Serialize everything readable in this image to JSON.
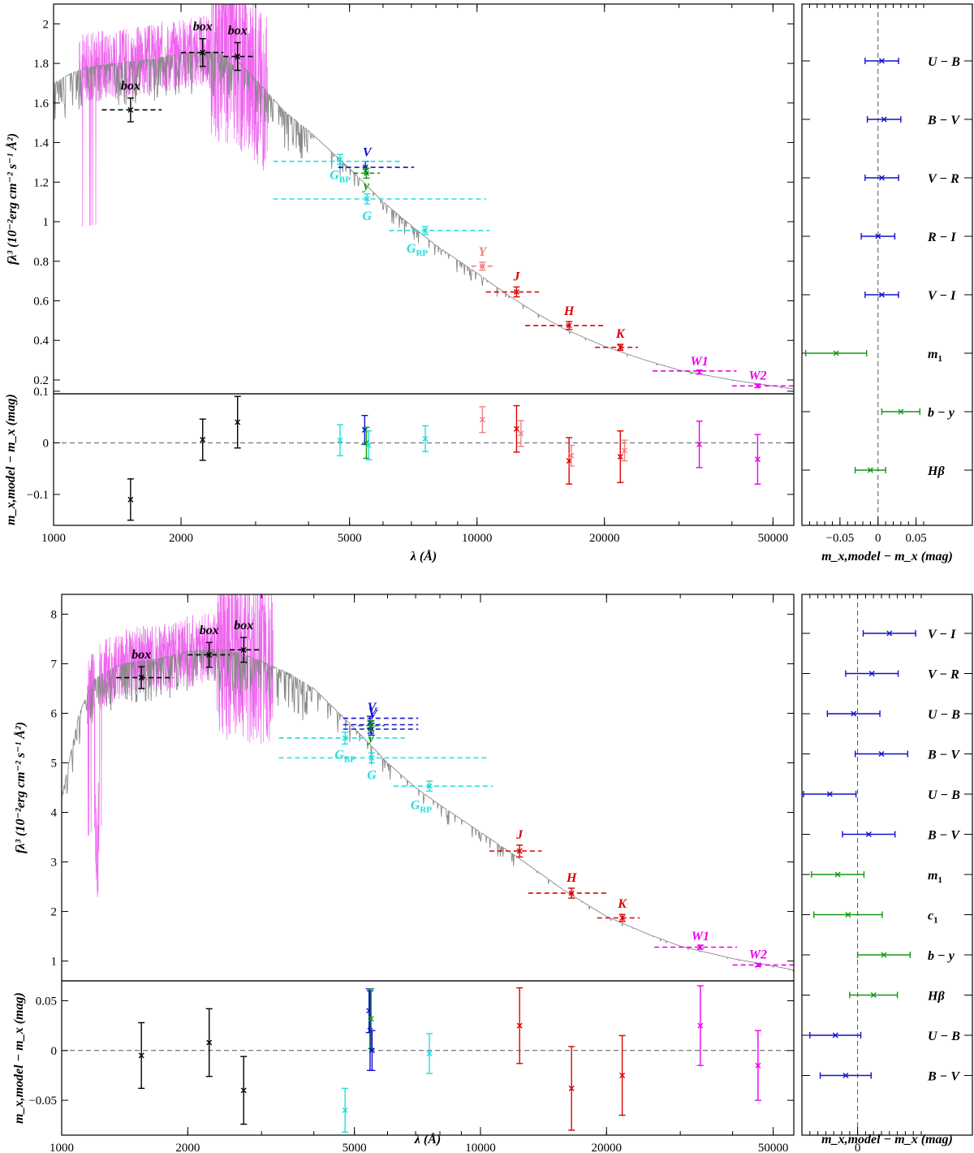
{
  "chart_data": [
    {
      "type": "scatter",
      "subtype": "spectral energy distribution with photometry",
      "x_axis": {
        "label": "λ (Å)",
        "scale": "log",
        "range": [
          1000,
          56000
        ],
        "ticks": [
          1000,
          2000,
          5000,
          10000,
          20000,
          50000
        ],
        "tick_labels": [
          "1000",
          "2000",
          "5000",
          "10000",
          "20000",
          "50000"
        ]
      },
      "sed_panel": {
        "ylabel": "fλ³ (10⁻²erg cm⁻² s⁻¹ Å²)",
        "ylim": [
          0.13,
          2.1
        ],
        "yticks": [
          0.2,
          0.4,
          0.6,
          0.8,
          1,
          1.2,
          1.4,
          1.6,
          1.8,
          2
        ],
        "ytick_labels": [
          "0.2",
          "0.4",
          "0.6",
          "0.8",
          "1",
          "1.2",
          "1.4",
          "1.6",
          "1.8",
          "2"
        ],
        "model_curve": {
          "color": "#888888",
          "x": [
            1000,
            1100,
            1200,
            1400,
            1700,
            2000,
            2400,
            2700,
            3000,
            3500,
            4000,
            5000,
            6000,
            7000,
            8000,
            10000,
            12000,
            14000,
            16000,
            20000,
            25000,
            30000,
            40000,
            50000,
            56000
          ],
          "y": [
            1.7,
            1.75,
            1.78,
            1.8,
            1.82,
            1.85,
            1.86,
            1.82,
            1.72,
            1.56,
            1.46,
            1.27,
            1.1,
            0.98,
            0.88,
            0.74,
            0.62,
            0.53,
            0.46,
            0.37,
            0.3,
            0.25,
            0.2,
            0.17,
            0.155
          ]
        },
        "iue_spectrum": {
          "color": "#ee66ee",
          "x_range": [
            1150,
            3200
          ],
          "note": "noisy UV spectrum"
        },
        "photometry": [
          {
            "label": "box",
            "color": "#000000",
            "x": 1520,
            "y": 1.565,
            "yerr": 0.06,
            "xlo": 1300,
            "xhi": 1800,
            "yline": 1.565
          },
          {
            "label": "box",
            "color": "#000000",
            "x": 2250,
            "y": 1.855,
            "yerr": 0.07,
            "xlo": 2000,
            "xhi": 2520,
            "yline": 1.855
          },
          {
            "label": "box",
            "color": "#000000",
            "x": 2720,
            "y": 1.835,
            "yerr": 0.07,
            "xlo": 2520,
            "xhi": 3000,
            "yline": 1.835
          },
          {
            "label": "V",
            "color": "#1111cc",
            "x": 5450,
            "y": 1.275,
            "yerr": 0.03,
            "xlo": 4700,
            "xhi": 7100,
            "yline": 1.275
          },
          {
            "label": "y",
            "color": "#119911",
            "x": 5480,
            "y": 1.245,
            "yerr": 0.025,
            "xlo": 5100,
            "xhi": 5900,
            "yline": 1.245
          },
          {
            "label": "G_BP",
            "color": "#22dddd",
            "x": 4750,
            "y": 1.315,
            "yerr": 0.025,
            "xlo": 3300,
            "xhi": 6600,
            "yline": 1.305
          },
          {
            "label": "G",
            "color": "#22dddd",
            "x": 5500,
            "y": 1.115,
            "yerr": 0.025,
            "xlo": 3300,
            "xhi": 10500,
            "yline": 1.115
          },
          {
            "label": "G_RP",
            "color": "#22dddd",
            "x": 7550,
            "y": 0.955,
            "yerr": 0.02,
            "xlo": 6200,
            "xhi": 10700,
            "yline": 0.955
          },
          {
            "label": "Y",
            "color": "#f08080",
            "x": 10300,
            "y": 0.775,
            "yerr": 0.02,
            "xlo": 9700,
            "xhi": 10900,
            "yline": 0.775
          },
          {
            "label": "J",
            "color": "#dd0000",
            "x": 12400,
            "y": 0.645,
            "yerr": 0.025,
            "xlo": 10500,
            "xhi": 14000,
            "yline": 0.645
          },
          {
            "label": "H",
            "color": "#dd0000",
            "x": 16500,
            "y": 0.475,
            "yerr": 0.02,
            "xlo": 13000,
            "xhi": 20000,
            "yline": 0.475
          },
          {
            "label": "K",
            "color": "#dd0000",
            "x": 21800,
            "y": 0.365,
            "yerr": 0.015,
            "xlo": 19000,
            "xhi": 24000,
            "yline": 0.365
          },
          {
            "label": "W1",
            "color": "#ee00ee",
            "x": 33500,
            "y": 0.24,
            "yerr": 0.01,
            "xlo": 26000,
            "xhi": 41000,
            "yline": 0.245
          },
          {
            "label": "W2",
            "color": "#ee00ee",
            "x": 46000,
            "y": 0.17,
            "yerr": 0.008,
            "xlo": 40000,
            "xhi": 56000,
            "yline": 0.17
          }
        ]
      },
      "residual_panel": {
        "ylabel": "m_x,model − m_x (mag)",
        "ylim": [
          -0.16,
          0.095
        ],
        "yticks": [
          -0.1,
          0,
          0.1
        ],
        "ytick_labels": [
          "−0.1",
          "0",
          "0.1"
        ],
        "points": [
          {
            "color": "#000000",
            "x": 1520,
            "y": -0.11,
            "err": 0.04
          },
          {
            "color": "#000000",
            "x": 2250,
            "y": 0.006,
            "err": 0.04
          },
          {
            "color": "#000000",
            "x": 2720,
            "y": 0.04,
            "err": 0.05
          },
          {
            "color": "#22dddd",
            "x": 4750,
            "y": 0.005,
            "err": 0.03
          },
          {
            "color": "#1111cc",
            "x": 5430,
            "y": 0.025,
            "err": 0.028
          },
          {
            "color": "#119911",
            "x": 5480,
            "y": 0.0,
            "err": 0.03
          },
          {
            "color": "#22dddd",
            "x": 5550,
            "y": -0.005,
            "err": 0.028
          },
          {
            "color": "#22dddd",
            "x": 7550,
            "y": 0.008,
            "err": 0.025
          },
          {
            "color": "#f08080",
            "x": 10300,
            "y": 0.045,
            "err": 0.025
          },
          {
            "color": "#dd0000",
            "x": 12400,
            "y": 0.027,
            "err": 0.045
          },
          {
            "color": "#f08080",
            "x": 12700,
            "y": 0.018,
            "err": 0.025
          },
          {
            "color": "#dd0000",
            "x": 16500,
            "y": -0.035,
            "err": 0.045
          },
          {
            "color": "#f08080",
            "x": 16700,
            "y": -0.025,
            "err": 0.02
          },
          {
            "color": "#dd0000",
            "x": 21800,
            "y": -0.027,
            "err": 0.05
          },
          {
            "color": "#f08080",
            "x": 22300,
            "y": -0.015,
            "err": 0.02
          },
          {
            "color": "#ee00ee",
            "x": 33500,
            "y": -0.003,
            "err": 0.045
          },
          {
            "color": "#ee00ee",
            "x": 46000,
            "y": -0.032,
            "err": 0.048
          }
        ]
      },
      "color_panel": {
        "xlabel": "m_x,model − m_x (mag)",
        "xlim": [
          -0.1,
          0.06
        ],
        "xticks": [
          -0.05,
          0,
          0.05
        ],
        "xtick_labels": [
          "−0.05",
          "0",
          "0.05"
        ],
        "indices": [
          {
            "label": "U − B",
            "color": "#1111cc",
            "value": 0.005,
            "err": 0.022
          },
          {
            "label": "B − V",
            "color": "#1111cc",
            "value": 0.008,
            "err": 0.022
          },
          {
            "label": "V − R",
            "color": "#1111cc",
            "value": 0.005,
            "err": 0.022
          },
          {
            "label": "R − I",
            "color": "#1111cc",
            "value": 0.0,
            "err": 0.022
          },
          {
            "label": "V − I",
            "color": "#1111cc",
            "value": 0.005,
            "err": 0.022
          },
          {
            "label": "m1",
            "color": "#119911",
            "value": -0.055,
            "err": 0.04
          },
          {
            "label": "b − y",
            "color": "#119911",
            "value": 0.03,
            "err": 0.025
          },
          {
            "label": "Hβ",
            "color": "#119911",
            "value": -0.01,
            "err": 0.02
          }
        ]
      }
    },
    {
      "type": "scatter",
      "subtype": "spectral energy distribution with photometry",
      "x_axis": {
        "label": "λ (Å)",
        "scale": "log",
        "range": [
          1000,
          56000
        ],
        "ticks": [
          1000,
          2000,
          5000,
          10000,
          20000,
          50000
        ],
        "tick_labels": [
          "1000",
          "2000",
          "5000",
          "10000",
          "20000",
          "50000"
        ]
      },
      "sed_panel": {
        "ylabel": "fλ³ (10⁻²erg cm⁻² s⁻¹ Å²)",
        "ylim": [
          0.6,
          8.4
        ],
        "yticks": [
          1,
          2,
          3,
          4,
          5,
          6,
          7,
          8
        ],
        "ytick_labels": [
          "1",
          "2",
          "3",
          "4",
          "5",
          "6",
          "7",
          "8"
        ],
        "model_curve": {
          "color": "#888888",
          "x": [
            1000,
            1100,
            1200,
            1400,
            1700,
            2000,
            2400,
            2700,
            3000,
            3500,
            4000,
            5000,
            6000,
            7000,
            8000,
            10000,
            12000,
            14000,
            16000,
            20000,
            25000,
            30000,
            40000,
            50000,
            56000
          ],
          "y": [
            4.3,
            6.0,
            6.7,
            7.0,
            7.1,
            7.25,
            7.3,
            7.2,
            7.05,
            6.8,
            6.5,
            5.7,
            5.0,
            4.5,
            4.15,
            3.6,
            3.15,
            2.75,
            2.4,
            1.9,
            1.55,
            1.3,
            1.05,
            0.9,
            0.82
          ]
        },
        "iue_spectrum": {
          "color": "#ee66ee",
          "x_range": [
            1150,
            3200
          ],
          "note": "noisy UV spectrum"
        },
        "photometry": [
          {
            "label": "box",
            "color": "#000000",
            "x": 1550,
            "y": 6.72,
            "yerr": 0.22,
            "xlo": 1350,
            "xhi": 1850,
            "yline": 6.72
          },
          {
            "label": "box",
            "color": "#000000",
            "x": 2250,
            "y": 7.18,
            "yerr": 0.25,
            "xlo": 2000,
            "xhi": 2520,
            "yline": 7.18
          },
          {
            "label": "box",
            "color": "#000000",
            "x": 2720,
            "y": 7.28,
            "yerr": 0.25,
            "xlo": 2520,
            "xhi": 3000,
            "yline": 7.28
          },
          {
            "label": "V",
            "color": "#1111cc",
            "x": 5450,
            "y": 5.82,
            "yerr": 0.12,
            "xlo": 4700,
            "xhi": 7100,
            "yline": 5.9
          },
          {
            "label": "V",
            "color": "#1111cc",
            "x": 5470,
            "y": 5.72,
            "yerr": 0.12,
            "xlo": 4700,
            "xhi": 7100,
            "yline": 5.77
          },
          {
            "label": "V",
            "color": "#1111cc",
            "x": 5490,
            "y": 5.68,
            "yerr": 0.12,
            "xlo": 4700,
            "xhi": 7100,
            "yline": 5.68
          },
          {
            "label": "y",
            "color": "#119911",
            "x": 5480,
            "y": 5.75,
            "yerr": 0.1,
            "xlo": 5100,
            "xhi": 5900,
            "yline": 5.75
          },
          {
            "label": "G_BP",
            "color": "#22dddd",
            "x": 4750,
            "y": 5.5,
            "yerr": 0.12,
            "xlo": 3300,
            "xhi": 6600,
            "yline": 5.5
          },
          {
            "label": "G",
            "color": "#22dddd",
            "x": 5500,
            "y": 5.1,
            "yerr": 0.1,
            "xlo": 3300,
            "xhi": 10500,
            "yline": 5.1
          },
          {
            "label": "G_RP",
            "color": "#22dddd",
            "x": 7550,
            "y": 4.53,
            "yerr": 0.1,
            "xlo": 6200,
            "xhi": 10700,
            "yline": 4.53
          },
          {
            "label": "J",
            "color": "#dd0000",
            "x": 12400,
            "y": 3.22,
            "yerr": 0.12,
            "xlo": 10500,
            "xhi": 14000,
            "yline": 3.22
          },
          {
            "label": "H",
            "color": "#dd0000",
            "x": 16500,
            "y": 2.37,
            "yerr": 0.1,
            "xlo": 13000,
            "xhi": 20000,
            "yline": 2.37
          },
          {
            "label": "K",
            "color": "#dd0000",
            "x": 21800,
            "y": 1.87,
            "yerr": 0.07,
            "xlo": 19000,
            "xhi": 24000,
            "yline": 1.87
          },
          {
            "label": "W1",
            "color": "#ee00ee",
            "x": 33500,
            "y": 1.28,
            "yerr": 0.04,
            "xlo": 26000,
            "xhi": 41000,
            "yline": 1.28
          },
          {
            "label": "W2",
            "color": "#ee00ee",
            "x": 46000,
            "y": 0.92,
            "yerr": 0.03,
            "xlo": 40000,
            "xhi": 56000,
            "yline": 0.92
          }
        ]
      },
      "residual_panel": {
        "ylabel": "m_x,model − m_x (mag)",
        "ylim": [
          -0.085,
          0.07
        ],
        "yticks": [
          -0.05,
          0,
          0.05
        ],
        "ytick_labels": [
          "−0.05",
          "0",
          "0.05"
        ],
        "points": [
          {
            "color": "#000000",
            "x": 1550,
            "y": -0.005,
            "err": 0.033
          },
          {
            "color": "#000000",
            "x": 2250,
            "y": 0.008,
            "err": 0.034
          },
          {
            "color": "#000000",
            "x": 2720,
            "y": -0.04,
            "err": 0.034
          },
          {
            "color": "#22dddd",
            "x": 4750,
            "y": -0.06,
            "err": 0.022
          },
          {
            "color": "#1111cc",
            "x": 5420,
            "y": 0.04,
            "err": 0.022
          },
          {
            "color": "#1111cc",
            "x": 5450,
            "y": 0.02,
            "err": 0.04
          },
          {
            "color": "#119911",
            "x": 5480,
            "y": 0.032,
            "err": 0.03
          },
          {
            "color": "#1111cc",
            "x": 5510,
            "y": 0.0,
            "err": 0.02
          },
          {
            "color": "#22dddd",
            "x": 7550,
            "y": -0.003,
            "err": 0.02
          },
          {
            "color": "#dd0000",
            "x": 12400,
            "y": 0.025,
            "err": 0.038
          },
          {
            "color": "#dd0000",
            "x": 16500,
            "y": -0.038,
            "err": 0.042
          },
          {
            "color": "#dd0000",
            "x": 21800,
            "y": -0.025,
            "err": 0.04
          },
          {
            "color": "#ee00ee",
            "x": 33500,
            "y": 0.025,
            "err": 0.04
          },
          {
            "color": "#ee00ee",
            "x": 46000,
            "y": -0.015,
            "err": 0.035
          }
        ]
      },
      "color_panel": {
        "xlabel": "m_x,model − m_x (mag)",
        "xlim": [
          -0.07,
          0.08
        ],
        "xticks": [
          0
        ],
        "xtick_labels": [
          "0"
        ],
        "indices": [
          {
            "label": "V − I",
            "color": "#1111cc",
            "value": 0.04,
            "err": 0.033
          },
          {
            "label": "V − R",
            "color": "#1111cc",
            "value": 0.018,
            "err": 0.033
          },
          {
            "label": "U − B",
            "color": "#1111cc",
            "value": -0.005,
            "err": 0.033
          },
          {
            "label": "B − V",
            "color": "#1111cc",
            "value": 0.03,
            "err": 0.033
          },
          {
            "label": "U − B",
            "color": "#1111cc",
            "value": -0.035,
            "err": 0.033
          },
          {
            "label": "B − V",
            "color": "#1111cc",
            "value": 0.014,
            "err": 0.033
          },
          {
            "label": "m1",
            "color": "#119911",
            "value": -0.025,
            "err": 0.033
          },
          {
            "label": "c1",
            "color": "#119911",
            "value": -0.012,
            "err": 0.043
          },
          {
            "label": "b − y",
            "color": "#119911",
            "value": 0.033,
            "err": 0.033
          },
          {
            "label": "Hβ",
            "color": "#119911",
            "value": 0.02,
            "err": 0.03
          },
          {
            "label": "U − B",
            "color": "#1111cc",
            "value": -0.028,
            "err": 0.032
          },
          {
            "label": "B − V",
            "color": "#1111cc",
            "value": -0.015,
            "err": 0.032
          }
        ]
      }
    }
  ]
}
